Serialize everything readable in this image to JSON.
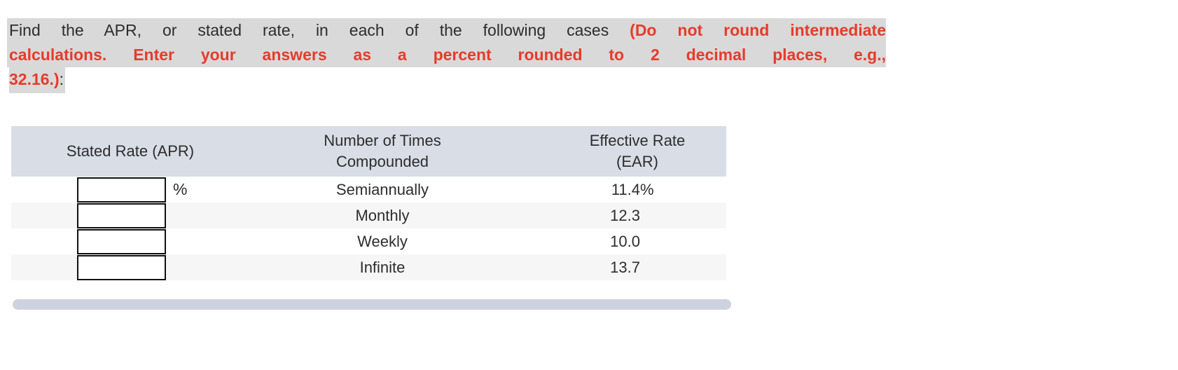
{
  "question": {
    "line1_black": "Find the APR, or stated rate, in each of the following cases ",
    "line1_red": "(Do not round intermediate",
    "line2_red": "calculations. Enter your answers as a percent rounded to 2 decimal places, e.g.,",
    "line3_red": "32.16.)",
    "line3_black": ":"
  },
  "table": {
    "headers": {
      "stated_rate": "Stated Rate (APR)",
      "compounded_line1": "Number of Times",
      "compounded_line2": "Compounded",
      "ear_line1": "Effective Rate",
      "ear_line2": "(EAR)"
    },
    "rows": [
      {
        "input_value": "",
        "input_suffix": "%",
        "compounded": "Semiannually",
        "ear": "11.4",
        "ear_suffix": "%"
      },
      {
        "input_value": "",
        "input_suffix": "",
        "compounded": "Monthly",
        "ear": "12.3",
        "ear_suffix": ""
      },
      {
        "input_value": "",
        "input_suffix": "",
        "compounded": "Weekly",
        "ear": "10.0",
        "ear_suffix": ""
      },
      {
        "input_value": "",
        "input_suffix": "",
        "compounded": "Infinite",
        "ear": "13.7",
        "ear_suffix": ""
      }
    ]
  },
  "colors": {
    "highlight_gray": "#d9d9d9",
    "instruction_red": "#e73b2a",
    "header_bg": "#d8dde6",
    "row_alt_bg": "#f6f6f7",
    "scrollbar": "#cdd3de",
    "text": "#2d2d2d"
  }
}
